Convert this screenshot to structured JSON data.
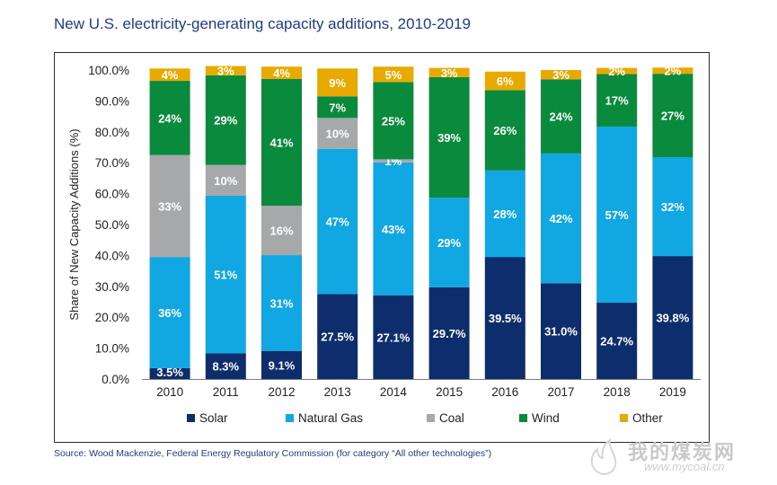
{
  "title": "New U.S. electricity-generating capacity additions, 2010-2019",
  "source": "Source: Wood Mackenzie, Federal Energy Regulatory Commission (for category “All other technologies”)",
  "watermark": {
    "text": "我的煤炭网",
    "url": "www.mycoal.cn"
  },
  "colors": {
    "Solar": "#0d2d6c",
    "Natural Gas": "#11a7e2",
    "Coal": "#a7a8aa",
    "Wind": "#0a8a3c",
    "Other": "#e8a900"
  },
  "chart_data": {
    "type": "bar",
    "stacked": true,
    "ylabel": "Share of New Capacity Additions (%)",
    "xlabel": "",
    "ylim": [
      0,
      100
    ],
    "yticks": [
      "0.0%",
      "10.0%",
      "20.0%",
      "30.0%",
      "40.0%",
      "50.0%",
      "60.0%",
      "70.0%",
      "80.0%",
      "90.0%",
      "100.0%"
    ],
    "categories": [
      "2010",
      "2011",
      "2012",
      "2013",
      "2014",
      "2015",
      "2016",
      "2017",
      "2018",
      "2019"
    ],
    "legend_position": "bottom",
    "series": [
      {
        "name": "Solar",
        "values": [
          3.5,
          8.3,
          9.1,
          27.5,
          27.1,
          29.7,
          39.5,
          31.0,
          24.7,
          39.8
        ],
        "labels": [
          "3.5%",
          "8.3%",
          "9.1%",
          "27.5%",
          "27.1%",
          "29.7%",
          "39.5%",
          "31.0%",
          "24.7%",
          "39.8%"
        ]
      },
      {
        "name": "Natural Gas",
        "values": [
          36,
          51,
          31,
          47,
          43,
          29,
          28,
          42,
          57,
          32
        ],
        "labels": [
          "36%",
          "51%",
          "31%",
          "47%",
          "43%",
          "29%",
          "28%",
          "42%",
          "57%",
          "32%"
        ]
      },
      {
        "name": "Coal",
        "values": [
          33,
          10,
          16,
          10,
          1,
          0,
          0,
          0,
          0,
          0
        ],
        "labels": [
          "33%",
          "10%",
          "16%",
          "10%",
          "1%",
          "",
          "",
          "",
          "",
          ""
        ]
      },
      {
        "name": "Wind",
        "values": [
          24,
          29,
          41,
          7,
          25,
          39,
          26,
          24,
          17,
          27
        ],
        "labels": [
          "24%",
          "29%",
          "41%",
          "7%",
          "25%",
          "39%",
          "26%",
          "24%",
          "17%",
          "27%"
        ]
      },
      {
        "name": "Other",
        "values": [
          4,
          3,
          4,
          9,
          5,
          3,
          6,
          3,
          2,
          2
        ],
        "labels": [
          "4%",
          "3%",
          "4%",
          "9%",
          "5%",
          "3%",
          "6%",
          "3%",
          "2%",
          "2%"
        ]
      }
    ]
  }
}
